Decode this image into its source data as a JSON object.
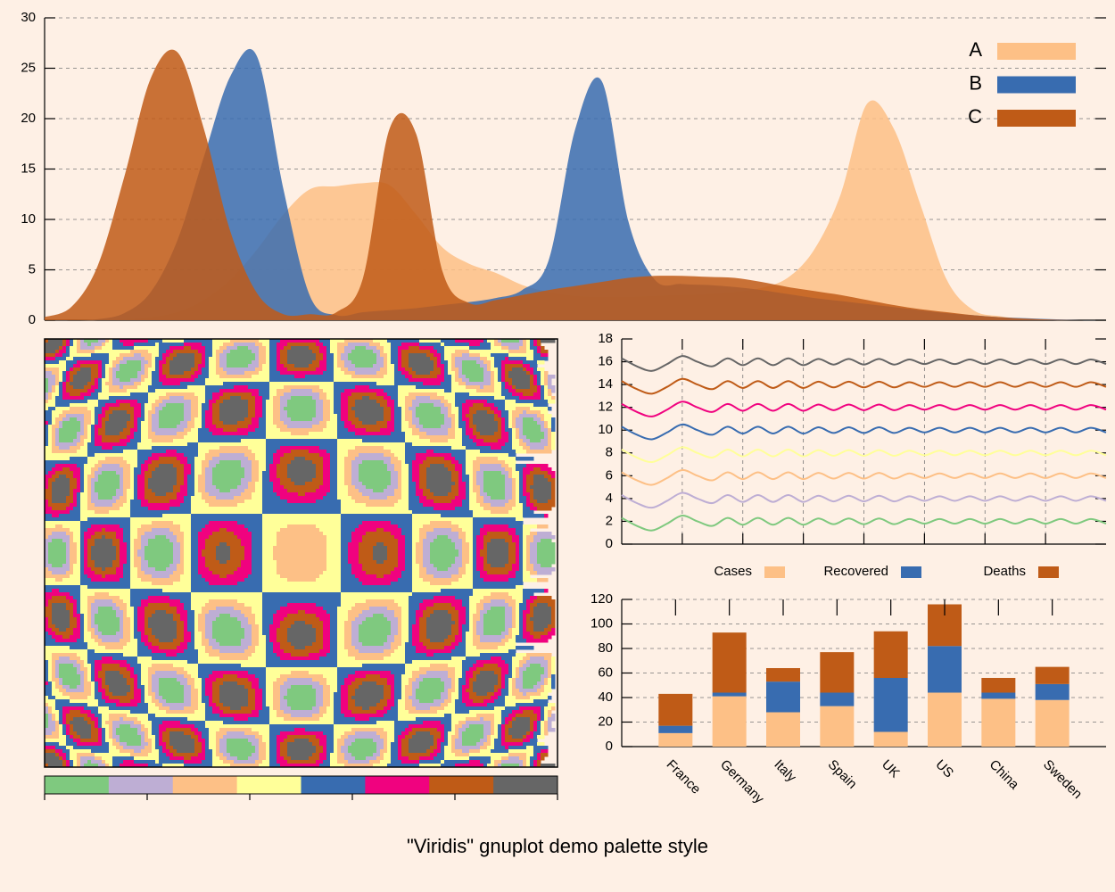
{
  "title": "\"Viridis\" gnuplot demo palette style",
  "chart_data": [
    {
      "type": "area",
      "x": [
        0,
        2.5,
        5,
        7.5,
        10,
        12.5,
        15,
        17.5,
        20,
        22.5,
        25,
        27.5,
        30,
        32.5,
        35,
        37.5,
        40,
        42.5,
        45,
        47.5,
        50,
        52.5,
        55,
        57.5,
        60,
        62.5,
        65,
        67.5,
        70,
        72.5,
        75,
        77.5,
        80,
        82.5,
        85,
        87.5,
        90,
        92.5,
        95,
        97.5,
        100
      ],
      "xlim": [
        0,
        100
      ],
      "ylim": [
        0,
        30
      ],
      "yticks": [
        0,
        5,
        10,
        15,
        20,
        25,
        30
      ],
      "grid": true,
      "legend": "top right",
      "series": [
        {
          "name": "A",
          "color": "#fdc086",
          "values": [
            0,
            0,
            0,
            0.1,
            0.3,
            0.8,
            2,
            4,
            7,
            10.5,
            13,
            13.3,
            13.6,
            13.4,
            10.5,
            7.2,
            5.6,
            4.7,
            3.5,
            2.8,
            2.4,
            2.3,
            2.3,
            2.4,
            2.5,
            2.6,
            2.8,
            3.2,
            4.2,
            7,
            12.5,
            21.5,
            19,
            11.5,
            4,
            1,
            0.4,
            0.1,
            0,
            0,
            0
          ]
        },
        {
          "name": "B",
          "color": "#386cb0",
          "values": [
            0,
            0,
            0.1,
            0.7,
            2.8,
            7.9,
            16.2,
            24.2,
            26.2,
            13,
            2.4,
            0.5,
            0.8,
            1,
            1.2,
            1.5,
            1.8,
            2.2,
            3,
            6,
            19,
            23.7,
            9.8,
            4,
            3.6,
            3.5,
            3.3,
            3,
            2.6,
            2.2,
            1.9,
            1.6,
            1.3,
            1,
            0.7,
            0.5,
            0.3,
            0.2,
            0.1,
            0,
            0
          ]
        },
        {
          "name": "C",
          "color": "#bf5b17",
          "values": [
            0.3,
            1.3,
            5.4,
            14.2,
            24,
            26.6,
            19,
            8.8,
            2.7,
            0.6,
            0.6,
            0.8,
            4.2,
            19,
            18.5,
            4.8,
            1.7,
            2,
            2.5,
            3,
            3.4,
            3.8,
            4.2,
            4.4,
            4.4,
            4.3,
            4.2,
            3.8,
            3.3,
            2.9,
            2.5,
            2,
            1.5,
            1.1,
            0.8,
            0.5,
            0.3,
            0.15,
            0.05,
            0,
            0
          ]
        }
      ]
    },
    {
      "type": "image",
      "palette": [
        "#7fc97f",
        "#beaed4",
        "#fdc086",
        "#ffff99",
        "#386cb0",
        "#f0027f",
        "#bf5b17",
        "#666666"
      ]
    },
    {
      "type": "line",
      "x": [
        0,
        0.25,
        0.5,
        0.75,
        1,
        1.25,
        1.5,
        1.75,
        2,
        2.25,
        2.5,
        2.75,
        3,
        3.25,
        3.5,
        3.75,
        4,
        4.25,
        4.5,
        4.75,
        5,
        5.25,
        5.5,
        5.75,
        6,
        6.25,
        6.5,
        6.75,
        7,
        7.25,
        7.5,
        7.75,
        8
      ],
      "xlim": [
        0,
        8
      ],
      "xticks": [
        1,
        2,
        3,
        4,
        5,
        6,
        7
      ],
      "ylim": [
        0,
        18
      ],
      "yticks": [
        0,
        2,
        4,
        6,
        8,
        10,
        12,
        14,
        16,
        18
      ],
      "grid": true,
      "series": [
        {
          "color": "#7fc97f",
          "values": [
            2.3,
            1.6,
            1.2,
            1.8,
            2.5,
            2,
            1.6,
            2.3,
            1.7,
            2.3,
            1.7,
            2.3,
            1.7,
            2.25,
            1.75,
            2.25,
            1.75,
            2.25,
            1.75,
            2.2,
            1.8,
            2.2,
            1.8,
            2.2,
            1.8,
            2.2,
            1.8,
            2.2,
            1.8,
            2.2,
            1.8,
            2.2,
            1.8
          ]
        },
        {
          "color": "#beaed4",
          "values": [
            4.3,
            3.6,
            3.2,
            3.8,
            4.5,
            4,
            3.6,
            4.3,
            3.7,
            4.3,
            3.7,
            4.3,
            3.7,
            4.25,
            3.75,
            4.25,
            3.75,
            4.25,
            3.75,
            4.2,
            3.8,
            4.2,
            3.8,
            4.2,
            3.8,
            4.2,
            3.8,
            4.2,
            3.8,
            4.2,
            3.8,
            4.2,
            3.8
          ]
        },
        {
          "color": "#fdc086",
          "values": [
            6.3,
            5.6,
            5.2,
            5.8,
            6.5,
            6,
            5.6,
            6.3,
            5.7,
            6.3,
            5.7,
            6.3,
            5.7,
            6.25,
            5.75,
            6.25,
            5.75,
            6.25,
            5.75,
            6.2,
            5.8,
            6.2,
            5.8,
            6.2,
            5.8,
            6.2,
            5.8,
            6.2,
            5.8,
            6.2,
            5.8,
            6.2,
            5.8
          ]
        },
        {
          "color": "#ffff99",
          "values": [
            8.3,
            7.6,
            7.2,
            7.8,
            8.5,
            8,
            7.6,
            8.3,
            7.7,
            8.3,
            7.7,
            8.3,
            7.7,
            8.25,
            7.75,
            8.25,
            7.75,
            8.25,
            7.75,
            8.2,
            7.8,
            8.2,
            7.8,
            8.2,
            7.8,
            8.2,
            7.8,
            8.2,
            7.8,
            8.2,
            7.8,
            8.2,
            7.8
          ]
        },
        {
          "color": "#386cb0",
          "values": [
            10.3,
            9.6,
            9.2,
            9.8,
            10.5,
            10,
            9.6,
            10.3,
            9.7,
            10.3,
            9.7,
            10.3,
            9.7,
            10.25,
            9.75,
            10.25,
            9.75,
            10.25,
            9.75,
            10.2,
            9.8,
            10.2,
            9.8,
            10.2,
            9.8,
            10.2,
            9.8,
            10.2,
            9.8,
            10.2,
            9.8,
            10.2,
            9.8
          ]
        },
        {
          "color": "#f0027f",
          "values": [
            12.3,
            11.6,
            11.2,
            11.8,
            12.5,
            12,
            11.6,
            12.3,
            11.7,
            12.3,
            11.7,
            12.3,
            11.7,
            12.25,
            11.75,
            12.25,
            11.75,
            12.25,
            11.75,
            12.2,
            11.8,
            12.2,
            11.8,
            12.2,
            11.8,
            12.2,
            11.8,
            12.2,
            11.8,
            12.2,
            11.8,
            12.2,
            11.8
          ]
        },
        {
          "color": "#bf5b17",
          "values": [
            14.3,
            13.6,
            13.2,
            13.8,
            14.5,
            14,
            13.6,
            14.3,
            13.7,
            14.3,
            13.7,
            14.3,
            13.7,
            14.25,
            13.75,
            14.25,
            13.75,
            14.25,
            13.75,
            14.2,
            13.8,
            14.2,
            13.8,
            14.2,
            13.8,
            14.2,
            13.8,
            14.2,
            13.8,
            14.2,
            13.8,
            14.2,
            13.8
          ]
        },
        {
          "color": "#666666",
          "values": [
            16.3,
            15.6,
            15.2,
            15.8,
            16.5,
            16,
            15.6,
            16.3,
            15.7,
            16.3,
            15.7,
            16.3,
            15.7,
            16.25,
            15.75,
            16.25,
            15.75,
            16.25,
            15.75,
            16.2,
            15.8,
            16.2,
            15.8,
            16.2,
            15.8,
            16.2,
            15.8,
            16.2,
            15.8,
            16.2,
            15.8,
            16.2,
            15.8
          ]
        }
      ]
    },
    {
      "type": "bar",
      "stacked": true,
      "categories": [
        "France",
        "Germany",
        "Italy",
        "Spain",
        "UK",
        "US",
        "China",
        "Sweden"
      ],
      "ylim": [
        0,
        120
      ],
      "yticks": [
        0,
        20,
        40,
        60,
        80,
        100,
        120
      ],
      "grid": true,
      "legend": "top",
      "series": [
        {
          "name": "Cases",
          "color": "#fdc086",
          "values": [
            11,
            41,
            28,
            33,
            12,
            44,
            39,
            38
          ]
        },
        {
          "name": "Recovered",
          "color": "#386cb0",
          "values": [
            6,
            3,
            25,
            11,
            44,
            38,
            5,
            13
          ]
        },
        {
          "name": "Deaths",
          "color": "#bf5b17",
          "values": [
            26,
            49,
            11,
            33,
            38,
            34,
            12,
            14
          ]
        }
      ]
    }
  ]
}
